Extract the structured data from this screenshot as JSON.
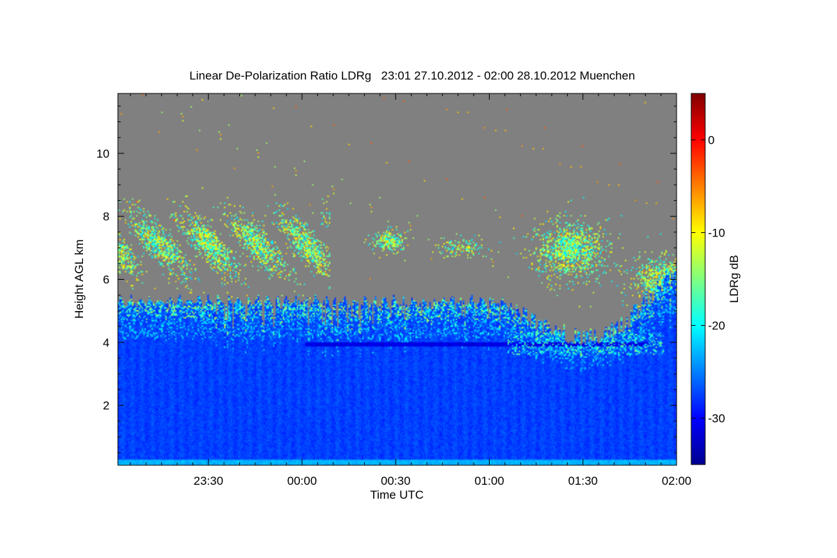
{
  "chart_data": {
    "type": "heatmap",
    "title": "Linear De-Polarization Ratio LDRg   23:01 27.10.2012 - 02:00 28.10.2012 Muenchen",
    "xlabel": "Time UTC",
    "ylabel": "Height AGL km",
    "x_ticks": [
      "23:30",
      "00:00",
      "00:30",
      "01:00",
      "01:30",
      "02:00"
    ],
    "x_tick_minutes": [
      29,
      59,
      89,
      119,
      149,
      179
    ],
    "x_range": [
      "23:01",
      "02:00"
    ],
    "x_range_minutes": [
      0,
      179
    ],
    "y_ticks": [
      2,
      4,
      6,
      8,
      10
    ],
    "y_range": [
      0.1,
      11.9
    ],
    "colorbar": {
      "label": "LDRg dB",
      "ticks": [
        0,
        -10,
        -20,
        -30
      ],
      "range": [
        -35,
        5
      ],
      "colormap": "jet"
    },
    "no_signal_color": "#808080",
    "features": [
      {
        "name": "Boundary layer",
        "height_km": [
          0.1,
          4.0
        ],
        "ldr_db": -27
      },
      {
        "name": "Precipitation fall streaks",
        "height_km": [
          4.0,
          5.5
        ],
        "ldr_db": -26
      },
      {
        "name": "Melting layer",
        "height_km": [
          3.8,
          4.0
        ],
        "ldr_db": -29
      },
      {
        "name": "Cirrus layer",
        "height_km": [
          6.2,
          8.2
        ],
        "ldr_db": -16,
        "time": [
          "23:01",
          "00:08"
        ]
      },
      {
        "name": "Cirrus patch",
        "height_km": [
          7.0,
          7.5
        ],
        "ldr_db": -12,
        "time": [
          "00:20",
          "00:30"
        ]
      },
      {
        "name": "Rising cloud top",
        "height_km": [
          3.5,
          7.5
        ],
        "ldr_db": -22,
        "time": [
          "01:10",
          "02:00"
        ]
      }
    ]
  }
}
